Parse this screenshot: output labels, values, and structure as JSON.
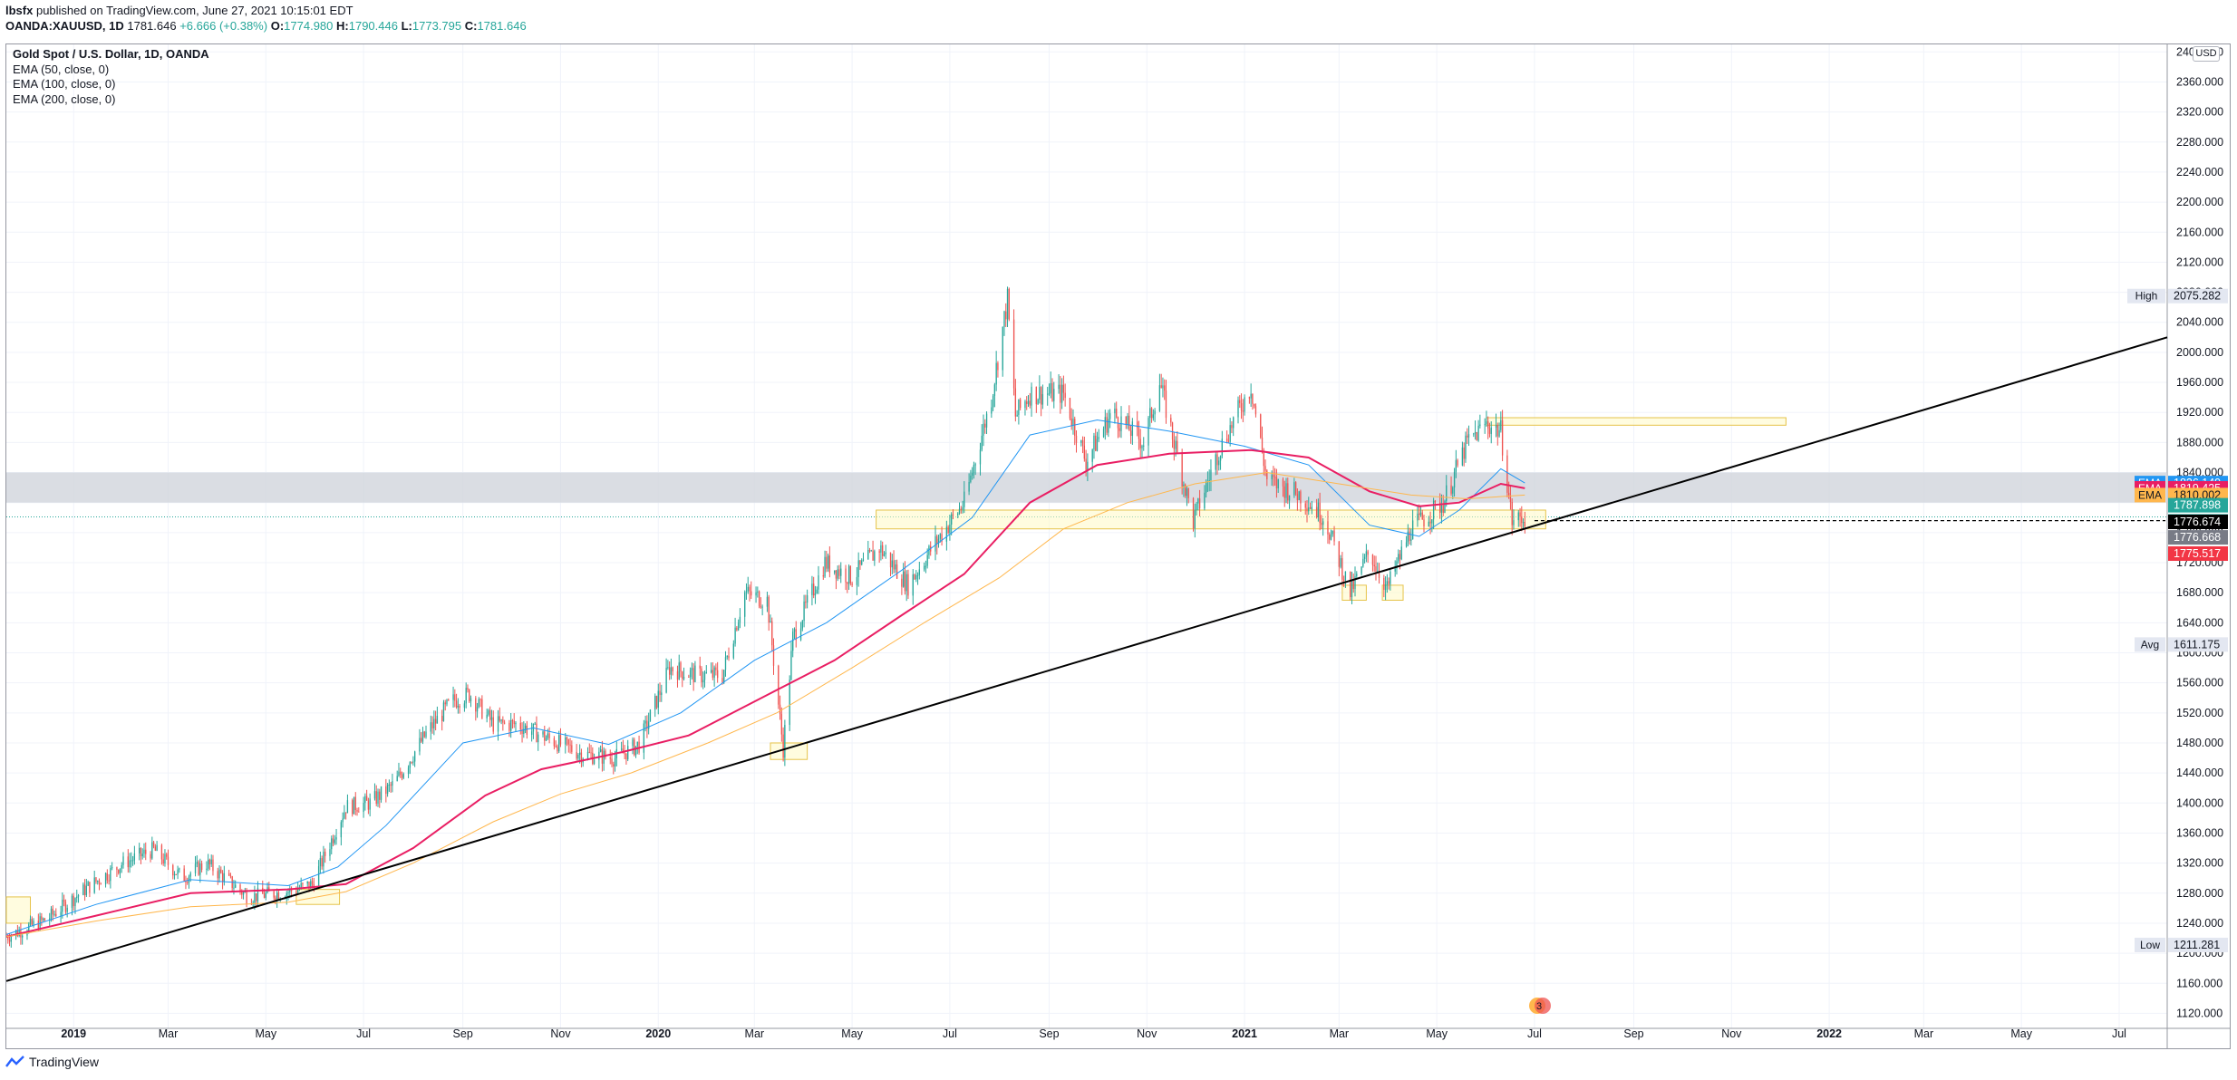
{
  "header": {
    "publisher": "lbsfx",
    "published_text": "published on TradingView.com, June 27, 2021 10:15:01 EDT",
    "symbol_line": "OANDA:XAUUSD, 1D",
    "last": "1781.646",
    "change": "+6.666 (+0.38%)",
    "o_label": "O:",
    "o": "1774.980",
    "h_label": "H:",
    "h": "1790.446",
    "l_label": "L:",
    "l": "1773.795",
    "c_label": "C:",
    "c": "1781.646"
  },
  "legend": {
    "title": "Gold Spot / U.S. Dollar, 1D, OANDA",
    "ema50": "EMA (50, close, 0)",
    "ema100": "EMA (100, close, 0)",
    "ema200": "EMA (200, close, 0)"
  },
  "currency": "USD",
  "footer": {
    "brand": "TradingView"
  },
  "events_badge": "3",
  "colors": {
    "up": "#26a69a",
    "down": "#ef5350",
    "ema50": "#2196f3",
    "ema100": "#e91e63",
    "ema200": "#ffb74d",
    "trendline": "#000000",
    "zone_fill": "#fff9c4",
    "zone_border": "#e6c34a",
    "resistance_band": "#d1d4dc"
  },
  "chart_data": {
    "type": "candlestick",
    "title": "Gold Spot / U.S. Dollar, 1D, OANDA",
    "x_range": [
      "2018-11-20",
      "2022-07-31"
    ],
    "ylim": [
      1100,
      2410
    ],
    "y_ticks": [
      1120,
      1160,
      1200,
      1240,
      1280,
      1320,
      1360,
      1400,
      1440,
      1480,
      1520,
      1560,
      1600,
      1640,
      1680,
      1720,
      1760,
      1800,
      1840,
      1880,
      1920,
      1960,
      2000,
      2040,
      2080,
      2120,
      2160,
      2200,
      2240,
      2280,
      2320,
      2360,
      2400
    ],
    "x_tick_labels": [
      {
        "label": "2019",
        "date": "2019-01-01",
        "bold": true
      },
      {
        "label": "Mar",
        "date": "2019-03-01"
      },
      {
        "label": "May",
        "date": "2019-05-01"
      },
      {
        "label": "Jul",
        "date": "2019-07-01"
      },
      {
        "label": "Sep",
        "date": "2019-09-01"
      },
      {
        "label": "Nov",
        "date": "2019-11-01"
      },
      {
        "label": "2020",
        "date": "2020-01-01",
        "bold": true
      },
      {
        "label": "Mar",
        "date": "2020-03-01"
      },
      {
        "label": "May",
        "date": "2020-05-01"
      },
      {
        "label": "Jul",
        "date": "2020-07-01"
      },
      {
        "label": "Sep",
        "date": "2020-09-01"
      },
      {
        "label": "Nov",
        "date": "2020-11-01"
      },
      {
        "label": "2021",
        "date": "2021-01-01",
        "bold": true
      },
      {
        "label": "Mar",
        "date": "2021-03-01"
      },
      {
        "label": "May",
        "date": "2021-05-01"
      },
      {
        "label": "Jul",
        "date": "2021-07-01"
      },
      {
        "label": "Sep",
        "date": "2021-09-01"
      },
      {
        "label": "Nov",
        "date": "2021-11-01"
      },
      {
        "label": "2022",
        "date": "2022-01-01",
        "bold": true
      },
      {
        "label": "Mar",
        "date": "2022-03-01"
      },
      {
        "label": "May",
        "date": "2022-05-01"
      },
      {
        "label": "Jul",
        "date": "2022-07-01"
      }
    ],
    "price_path": [
      [
        "2018-11-20",
        1222
      ],
      [
        "2018-12-15",
        1245
      ],
      [
        "2019-01-10",
        1288
      ],
      [
        "2019-02-01",
        1320
      ],
      [
        "2019-02-20",
        1338
      ],
      [
        "2019-03-10",
        1300
      ],
      [
        "2019-03-25",
        1320
      ],
      [
        "2019-04-20",
        1275
      ],
      [
        "2019-05-15",
        1282
      ],
      [
        "2019-05-30",
        1292
      ],
      [
        "2019-06-20",
        1395
      ],
      [
        "2019-07-05",
        1400
      ],
      [
        "2019-07-20",
        1425
      ],
      [
        "2019-08-10",
        1495
      ],
      [
        "2019-08-25",
        1535
      ],
      [
        "2019-09-05",
        1545
      ],
      [
        "2019-09-20",
        1505
      ],
      [
        "2019-10-05",
        1505
      ],
      [
        "2019-10-20",
        1490
      ],
      [
        "2019-11-15",
        1465
      ],
      [
        "2019-12-05",
        1460
      ],
      [
        "2019-12-20",
        1478
      ],
      [
        "2020-01-08",
        1580
      ],
      [
        "2020-01-25",
        1570
      ],
      [
        "2020-02-10",
        1570
      ],
      [
        "2020-02-24",
        1680
      ],
      [
        "2020-03-09",
        1670
      ],
      [
        "2020-03-19",
        1472
      ],
      [
        "2020-03-25",
        1620
      ],
      [
        "2020-04-14",
        1720
      ],
      [
        "2020-05-01",
        1700
      ],
      [
        "2020-05-18",
        1740
      ],
      [
        "2020-06-05",
        1690
      ],
      [
        "2020-06-20",
        1740
      ],
      [
        "2020-07-10",
        1800
      ],
      [
        "2020-07-27",
        1940
      ],
      [
        "2020-08-06",
        2070
      ],
      [
        "2020-08-11",
        1915
      ],
      [
        "2020-08-20",
        1945
      ],
      [
        "2020-09-10",
        1945
      ],
      [
        "2020-09-24",
        1855
      ],
      [
        "2020-10-10",
        1920
      ],
      [
        "2020-10-30",
        1880
      ],
      [
        "2020-11-09",
        1960
      ],
      [
        "2020-11-30",
        1775
      ],
      [
        "2020-12-16",
        1870
      ],
      [
        "2021-01-05",
        1955
      ],
      [
        "2021-01-15",
        1830
      ],
      [
        "2021-02-05",
        1810
      ],
      [
        "2021-02-20",
        1780
      ],
      [
        "2021-03-08",
        1680
      ],
      [
        "2021-03-20",
        1735
      ],
      [
        "2021-03-31",
        1685
      ],
      [
        "2021-04-15",
        1765
      ],
      [
        "2021-05-05",
        1800
      ],
      [
        "2021-05-20",
        1880
      ],
      [
        "2021-06-01",
        1905
      ],
      [
        "2021-06-10",
        1895
      ],
      [
        "2021-06-17",
        1775
      ],
      [
        "2021-06-25",
        1781
      ]
    ],
    "ema_paths": {
      "ema50": [
        [
          "2018-11-20",
          1225
        ],
        [
          "2019-01-15",
          1265
        ],
        [
          "2019-03-15",
          1298
        ],
        [
          "2019-05-15",
          1290
        ],
        [
          "2019-06-15",
          1315
        ],
        [
          "2019-07-15",
          1370
        ],
        [
          "2019-09-01",
          1480
        ],
        [
          "2019-10-15",
          1500
        ],
        [
          "2019-12-01",
          1478
        ],
        [
          "2020-01-15",
          1520
        ],
        [
          "2020-03-01",
          1590
        ],
        [
          "2020-04-15",
          1640
        ],
        [
          "2020-06-01",
          1710
        ],
        [
          "2020-07-15",
          1780
        ],
        [
          "2020-08-20",
          1890
        ],
        [
          "2020-10-01",
          1910
        ],
        [
          "2020-11-15",
          1895
        ],
        [
          "2021-01-01",
          1875
        ],
        [
          "2021-02-10",
          1850
        ],
        [
          "2021-03-20",
          1770
        ],
        [
          "2021-04-20",
          1755
        ],
        [
          "2021-05-15",
          1790
        ],
        [
          "2021-06-10",
          1845
        ],
        [
          "2021-06-25",
          1826
        ]
      ],
      "ema100": [
        [
          "2018-11-20",
          1222
        ],
        [
          "2019-01-15",
          1250
        ],
        [
          "2019-03-15",
          1280
        ],
        [
          "2019-05-15",
          1285
        ],
        [
          "2019-06-20",
          1292
        ],
        [
          "2019-08-01",
          1340
        ],
        [
          "2019-09-15",
          1410
        ],
        [
          "2019-10-20",
          1445
        ],
        [
          "2019-12-10",
          1468
        ],
        [
          "2020-01-20",
          1490
        ],
        [
          "2020-03-10",
          1545
        ],
        [
          "2020-04-20",
          1590
        ],
        [
          "2020-06-01",
          1650
        ],
        [
          "2020-07-10",
          1705
        ],
        [
          "2020-08-20",
          1800
        ],
        [
          "2020-10-01",
          1850
        ],
        [
          "2020-11-15",
          1865
        ],
        [
          "2021-01-05",
          1870
        ],
        [
          "2021-02-10",
          1860
        ],
        [
          "2021-03-20",
          1815
        ],
        [
          "2021-04-20",
          1795
        ],
        [
          "2021-05-15",
          1800
        ],
        [
          "2021-06-10",
          1825
        ],
        [
          "2021-06-25",
          1819
        ]
      ],
      "ema200": [
        [
          "2018-11-20",
          1222
        ],
        [
          "2019-01-15",
          1243
        ],
        [
          "2019-03-15",
          1262
        ],
        [
          "2019-05-15",
          1268
        ],
        [
          "2019-06-20",
          1282
        ],
        [
          "2019-08-01",
          1320
        ],
        [
          "2019-09-20",
          1375
        ],
        [
          "2019-11-01",
          1412
        ],
        [
          "2019-12-15",
          1440
        ],
        [
          "2020-02-01",
          1480
        ],
        [
          "2020-03-15",
          1520
        ],
        [
          "2020-05-01",
          1580
        ],
        [
          "2020-06-15",
          1640
        ],
        [
          "2020-08-01",
          1700
        ],
        [
          "2020-09-10",
          1765
        ],
        [
          "2020-10-20",
          1800
        ],
        [
          "2020-12-01",
          1825
        ],
        [
          "2021-01-15",
          1840
        ],
        [
          "2021-03-01",
          1825
        ],
        [
          "2021-04-15",
          1810
        ],
        [
          "2021-05-20",
          1805
        ],
        [
          "2021-06-25",
          1810
        ]
      ]
    },
    "trendline": {
      "from": [
        "2018-11-20",
        1163
      ],
      "to": [
        "2022-07-31",
        2020
      ]
    },
    "dashed_line": {
      "from": [
        "2021-07-01",
        1776
      ],
      "to": [
        "2022-07-31",
        1776
      ]
    },
    "resistance_band": {
      "y1": 1800,
      "y2": 1840
    },
    "zones": [
      {
        "x1": "2018-11-20",
        "x2": "2018-12-05",
        "y1": 1240,
        "y2": 1275
      },
      {
        "x1": "2019-05-20",
        "x2": "2019-06-16",
        "y1": 1265,
        "y2": 1285
      },
      {
        "x1": "2020-03-11",
        "x2": "2020-04-03",
        "y1": 1458,
        "y2": 1480
      },
      {
        "x1": "2020-05-16",
        "x2": "2021-07-08",
        "y1": 1765,
        "y2": 1790
      },
      {
        "x1": "2021-03-03",
        "x2": "2021-03-18",
        "y1": 1670,
        "y2": 1690
      },
      {
        "x1": "2021-03-28",
        "x2": "2021-04-10",
        "y1": 1670,
        "y2": 1690
      },
      {
        "x1": "2021-06-01",
        "x2": "2021-12-05",
        "y1": 1903,
        "y2": 1913
      }
    ],
    "price_labels": [
      {
        "tag": "High",
        "value": "2075.282",
        "y": 2075,
        "bg": "#e3e7f1",
        "fg": "#131722"
      },
      {
        "tag": "EMA",
        "value": "1826.149",
        "y": 1826,
        "bg": "#2196f3",
        "fg": "#ffffff"
      },
      {
        "tag": "EMA",
        "value": "1819.425",
        "y": 1819,
        "bg": "#e91e63",
        "fg": "#ffffff"
      },
      {
        "tag": "EMA",
        "value": "1810.002",
        "y": 1810,
        "bg": "#ffb74d",
        "fg": "#131722"
      },
      {
        "tag": "",
        "value": "1787.898",
        "y": 1788,
        "bg": "#26a69a",
        "fg": "#ffffff"
      },
      {
        "tag": "",
        "value": "1781.646",
        "y": 1781,
        "bg": "#26a69a",
        "fg": "#ffffff"
      },
      {
        "tag": "",
        "value": "1776.674",
        "y": 1776.7,
        "bg": "#000000",
        "fg": "#ffffff"
      },
      {
        "tag": "",
        "value": "1776.668",
        "y": 1776.6,
        "bg": "#787b86",
        "fg": "#ffffff"
      },
      {
        "tag": "",
        "value": "1775.517",
        "y": 1775.5,
        "bg": "#f23645",
        "fg": "#ffffff"
      },
      {
        "tag": "Avg",
        "value": "1611.175",
        "y": 1611,
        "bg": "#e3e7f1",
        "fg": "#131722"
      },
      {
        "tag": "Low",
        "value": "1211.281",
        "y": 1211,
        "bg": "#e3e7f1",
        "fg": "#131722"
      }
    ]
  }
}
